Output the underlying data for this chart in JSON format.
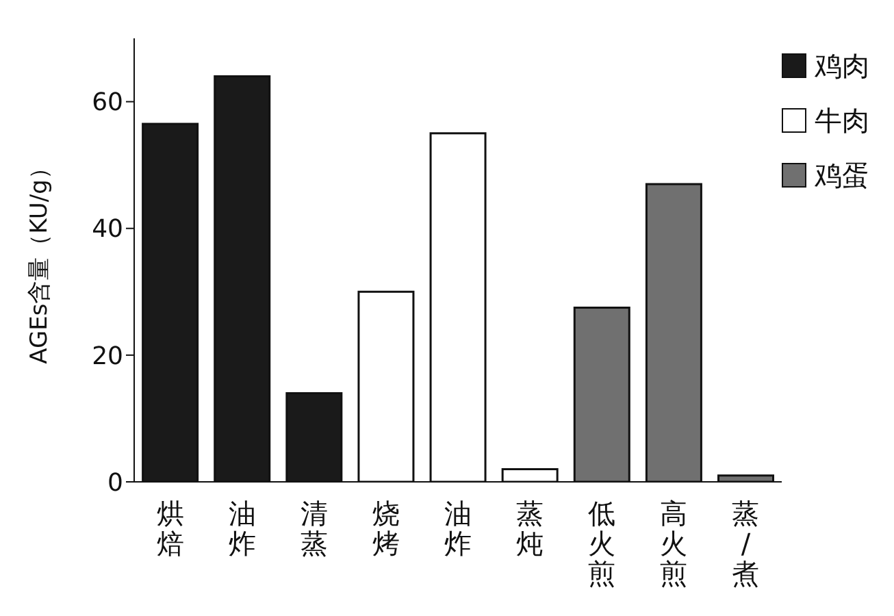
{
  "chart_data": {
    "type": "bar",
    "ylabel": "AGEs含量（KU/g）",
    "categories": [
      "烘焙",
      "油炸",
      "清蒸",
      "烧烤",
      "油炸",
      "蒸炖",
      "低火煎",
      "高火煎",
      "蒸/煮"
    ],
    "stacked": true,
    "ylim": [
      0,
      70
    ],
    "yticks": [
      0,
      20,
      40,
      60
    ],
    "legend": "top right",
    "series": [
      {
        "name": "鸡肉",
        "color": "#1a1a1a",
        "values": [
          56.5,
          64,
          14,
          null,
          null,
          null,
          null,
          null,
          null
        ]
      },
      {
        "name": "牛肉",
        "color": "#ffffff",
        "values": [
          null,
          null,
          null,
          30,
          55,
          2,
          null,
          null,
          null
        ]
      },
      {
        "name": "鸡蛋",
        "color": "#707070",
        "values": [
          null,
          null,
          null,
          null,
          null,
          null,
          27.5,
          47,
          1
        ]
      }
    ]
  }
}
